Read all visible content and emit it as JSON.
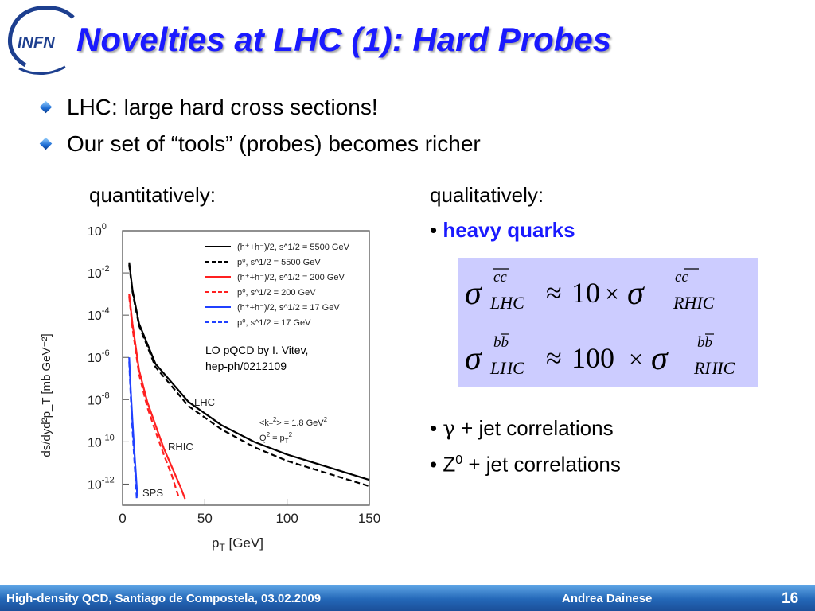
{
  "slide": {
    "title": "Novelties at LHC (1): Hard Probes",
    "logo_text": "INFN",
    "bullets": [
      "LHC: large hard cross sections!",
      "Our set of “tools” (probes) becomes richer"
    ],
    "quantitatively_label": "quantitatively:",
    "qualitatively_label": "qualitatively:",
    "heavy_prefix": "• ",
    "heavy_quarks": "heavy quarks",
    "correlations": [
      {
        "prefix": "• ",
        "symbol": "γ",
        "text": " + jet correlations"
      },
      {
        "prefix": "• Z",
        "sup": "0",
        "text": " + jet correlations"
      }
    ]
  },
  "formulas": [
    {
      "lhs_sup": "cc",
      "lhs_sub": "LHC",
      "factor": "10",
      "rhs_sup": "cc",
      "rhs_sub": "RHIC"
    },
    {
      "lhs_sup": "bb",
      "lhs_sub": "LHC",
      "factor": "100",
      "rhs_sup": "bb",
      "rhs_sub": "RHIC"
    }
  ],
  "chart_data": {
    "type": "line",
    "xlabel": "p",
    "xlabel_sub": "T",
    "xlabel_unit": " [GeV]",
    "ylabel": "ds/dyd²p_T [mb GeV⁻²]",
    "xlim": [
      0,
      150
    ],
    "x_ticks": [
      "0",
      "50",
      "100",
      "150"
    ],
    "y_tick_exponents": [
      "0",
      "2",
      "4",
      "6",
      "8",
      "10",
      "12"
    ],
    "y_scale": "log",
    "annotation": [
      "LO pQCD by I. Vitev,",
      "hep-ph/0212109"
    ],
    "labels": {
      "lhc": "LHC",
      "rhic": "RHIC",
      "sps": "SPS",
      "kt": "<k",
      "kt_sub": "T",
      "kt_rest": "> = 1.8 GeV",
      "q2": "Q",
      "q2_rest": " = p",
      "q2_sub": "T"
    },
    "series": [
      {
        "name": "(h⁺+h⁻)/2, s^1/2 = 5500 GeV",
        "color": "#000000",
        "dash": false,
        "x": [
          4,
          6,
          10,
          20,
          40,
          60,
          80,
          100,
          125,
          150
        ],
        "y": [
          -1.5,
          -2.8,
          -4.4,
          -6.3,
          -8.1,
          -9.2,
          -10.0,
          -10.6,
          -11.2,
          -11.8
        ]
      },
      {
        "name": "p⁰, s^1/2 = 5500 GeV",
        "color": "#000000",
        "dash": true,
        "x": [
          4,
          6,
          10,
          20,
          40,
          60,
          80,
          100,
          125,
          150
        ],
        "y": [
          -1.6,
          -2.9,
          -4.5,
          -6.45,
          -8.3,
          -9.4,
          -10.25,
          -10.9,
          -11.5,
          -12.1
        ]
      },
      {
        "name": "(h⁺+h⁻)/2, s^1/2 = 200 GeV",
        "color": "#ff2020",
        "dash": false,
        "x": [
          4,
          6,
          10,
          15,
          20,
          25,
          30,
          35,
          38
        ],
        "y": [
          -3.0,
          -4.4,
          -6.6,
          -8.1,
          -9.2,
          -10.3,
          -11.2,
          -12.1,
          -12.7
        ]
      },
      {
        "name": "p⁰, s^1/2 = 200 GeV",
        "color": "#ff2020",
        "dash": true,
        "x": [
          4,
          6,
          10,
          15,
          20,
          25,
          30,
          34
        ],
        "y": [
          -3.1,
          -4.6,
          -6.8,
          -8.35,
          -9.5,
          -10.6,
          -11.6,
          -12.6
        ]
      },
      {
        "name": "(h⁺+h⁻)/2, s^1/2 = 17 GeV",
        "color": "#2040ff",
        "dash": false,
        "x": [
          4,
          5,
          6,
          7,
          8,
          9
        ],
        "y": [
          -6.0,
          -7.6,
          -9.0,
          -10.3,
          -11.4,
          -12.6
        ]
      },
      {
        "name": "p⁰, s^1/2 = 17 GeV",
        "color": "#2040ff",
        "dash": true,
        "x": [
          4,
          5,
          6,
          7,
          8,
          8.6
        ],
        "y": [
          -6.2,
          -7.9,
          -9.4,
          -10.7,
          -11.9,
          -12.7
        ]
      }
    ]
  },
  "footer": {
    "left": "High-density QCD, Santiago de Compostela, 03.02.2009",
    "author": "Andrea Dainese",
    "page": "16"
  }
}
